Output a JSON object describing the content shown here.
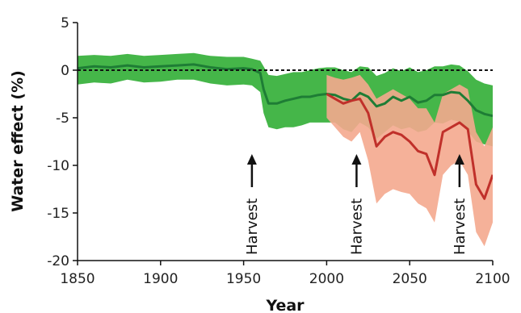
{
  "chart_data": {
    "type": "area",
    "xlabel": "Year",
    "ylabel": "Water effect (%)",
    "xlim": [
      1850,
      2100
    ],
    "ylim": [
      -20,
      5
    ],
    "x_ticks": [
      1850,
      1900,
      1950,
      2000,
      2050,
      2100
    ],
    "y_ticks": [
      5,
      0,
      -5,
      -10,
      -15,
      -20
    ],
    "y_tick_labels": [
      "5",
      "0",
      "-5",
      "-10",
      "-15",
      "-20"
    ],
    "reference_line": {
      "y": 0,
      "style": "dashed"
    },
    "annotations": [
      {
        "text": "Harvest",
        "x": 1955,
        "arrow": "up"
      },
      {
        "text": "Harvest",
        "x": 2018,
        "arrow": "up"
      },
      {
        "text": "Harvest",
        "x": 2080,
        "arrow": "up"
      }
    ],
    "series": [
      {
        "color": "#1e7d35",
        "band_color": "#45b649",
        "x": [
          1850,
          1860,
          1870,
          1880,
          1890,
          1900,
          1910,
          1920,
          1930,
          1940,
          1950,
          1955,
          1960,
          1962,
          1965,
          1970,
          1975,
          1980,
          1985,
          1990,
          1995,
          2000,
          2005,
          2010,
          2015,
          2020,
          2025,
          2030,
          2035,
          2040,
          2045,
          2050,
          2055,
          2060,
          2065,
          2070,
          2075,
          2080,
          2085,
          2090,
          2095,
          2100
        ],
        "mean": [
          0.2,
          0.4,
          0.3,
          0.5,
          0.3,
          0.4,
          0.5,
          0.6,
          0.3,
          0.1,
          0.2,
          0.1,
          -0.3,
          -2,
          -3.5,
          -3.5,
          -3.2,
          -3.0,
          -2.8,
          -2.8,
          -2.6,
          -2.5,
          -2.6,
          -3.0,
          -3.2,
          -2.4,
          -2.8,
          -3.8,
          -3.5,
          -2.8,
          -3.2,
          -2.8,
          -3.4,
          -3.2,
          -2.6,
          -2.6,
          -2.3,
          -2.4,
          -3.2,
          -4.2,
          -4.6,
          -4.8
        ],
        "lower": [
          -1.5,
          -1.3,
          -1.4,
          -1.0,
          -1.3,
          -1.2,
          -1.0,
          -1.0,
          -1.4,
          -1.6,
          -1.5,
          -1.6,
          -2.3,
          -4.5,
          -6.0,
          -6.2,
          -6.0,
          -6.0,
          -5.8,
          -5.5,
          -5.5,
          -5.5,
          -5.5,
          -6.2,
          -6.5,
          -5.5,
          -6.0,
          -7.2,
          -6.5,
          -5.8,
          -6.2,
          -6.0,
          -6.5,
          -6.3,
          -5.5,
          -5.6,
          -5.2,
          -5.4,
          -6.4,
          -7.5,
          -7.8,
          -8.0
        ],
        "upper": [
          1.5,
          1.6,
          1.5,
          1.7,
          1.5,
          1.6,
          1.7,
          1.8,
          1.5,
          1.4,
          1.4,
          1.2,
          1.0,
          0.4,
          -0.5,
          -0.6,
          -0.4,
          -0.2,
          -0.2,
          0.0,
          0.2,
          0.3,
          0.3,
          0.0,
          -0.2,
          0.4,
          0.3,
          -0.6,
          -0.3,
          0.2,
          -0.1,
          0.3,
          -0.2,
          0.0,
          0.4,
          0.4,
          0.6,
          0.5,
          -0.1,
          -1.0,
          -1.4,
          -1.6
        ]
      },
      {
        "color": "#c0302a",
        "band_color": "#f4a88e",
        "x": [
          2000,
          2005,
          2010,
          2015,
          2020,
          2025,
          2030,
          2035,
          2040,
          2045,
          2050,
          2055,
          2060,
          2065,
          2070,
          2075,
          2080,
          2085,
          2090,
          2095,
          2100
        ],
        "mean": [
          -2.5,
          -3.0,
          -3.5,
          -3.2,
          -3.0,
          -4.5,
          -8.0,
          -7.0,
          -6.5,
          -6.8,
          -7.5,
          -8.5,
          -8.8,
          -11.0,
          -6.5,
          -6.0,
          -5.5,
          -6.2,
          -12.0,
          -13.5,
          -11.0
        ],
        "lower": [
          -5.0,
          -6.0,
          -7.0,
          -7.5,
          -6.5,
          -9.5,
          -14.0,
          -13.0,
          -12.5,
          -12.8,
          -13.0,
          -14.0,
          -14.5,
          -16.0,
          -11.0,
          -10.0,
          -9.5,
          -11.0,
          -17.0,
          -18.5,
          -16.0
        ],
        "upper": [
          -0.5,
          -0.8,
          -1.0,
          -0.8,
          -0.5,
          -1.5,
          -3.0,
          -2.5,
          -2.0,
          -2.5,
          -3.0,
          -4.0,
          -4.0,
          -5.5,
          -2.5,
          -2.0,
          -1.5,
          -2.0,
          -6.5,
          -8.0,
          -6.0
        ]
      }
    ]
  }
}
